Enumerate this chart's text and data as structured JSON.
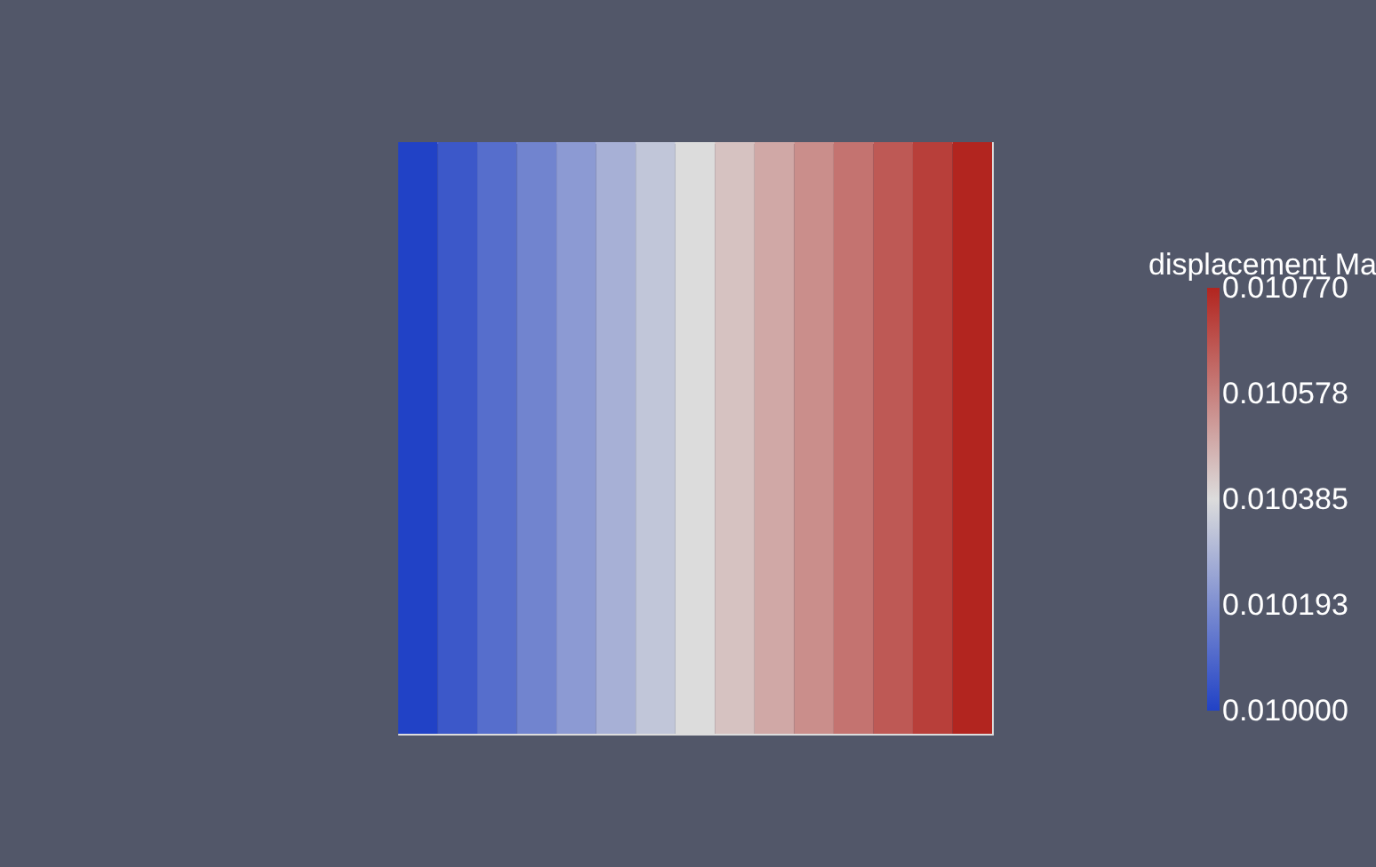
{
  "chart_data": {
    "type": "heatmap",
    "categories": [
      null,
      null,
      null,
      null,
      null,
      null,
      null,
      null,
      null,
      null,
      null,
      null,
      null,
      null,
      null
    ],
    "y_categories": [
      null
    ],
    "cells": [
      [
        0.01,
        0.010055,
        0.01011,
        0.010165,
        0.01022,
        0.010275,
        0.01033,
        0.010385,
        0.01044,
        0.010495,
        0.01055,
        0.010605,
        0.01066,
        0.010715,
        0.01077
      ]
    ],
    "legend_title": "displacement Ma",
    "clim": [
      0.01,
      0.01077
    ],
    "cticks": [
      {
        "value": 0.01,
        "label": "0.010000"
      },
      {
        "value": 0.0101925,
        "label": "0.010193"
      },
      {
        "value": 0.010385,
        "label": "0.010385"
      },
      {
        "value": 0.0105775,
        "label": "0.010578"
      },
      {
        "value": 0.01077,
        "label": "0.010770"
      }
    ],
    "colors": [
      "#2142c6",
      "#dcdcdc",
      "#b2251f"
    ],
    "tick_labels": false
  }
}
